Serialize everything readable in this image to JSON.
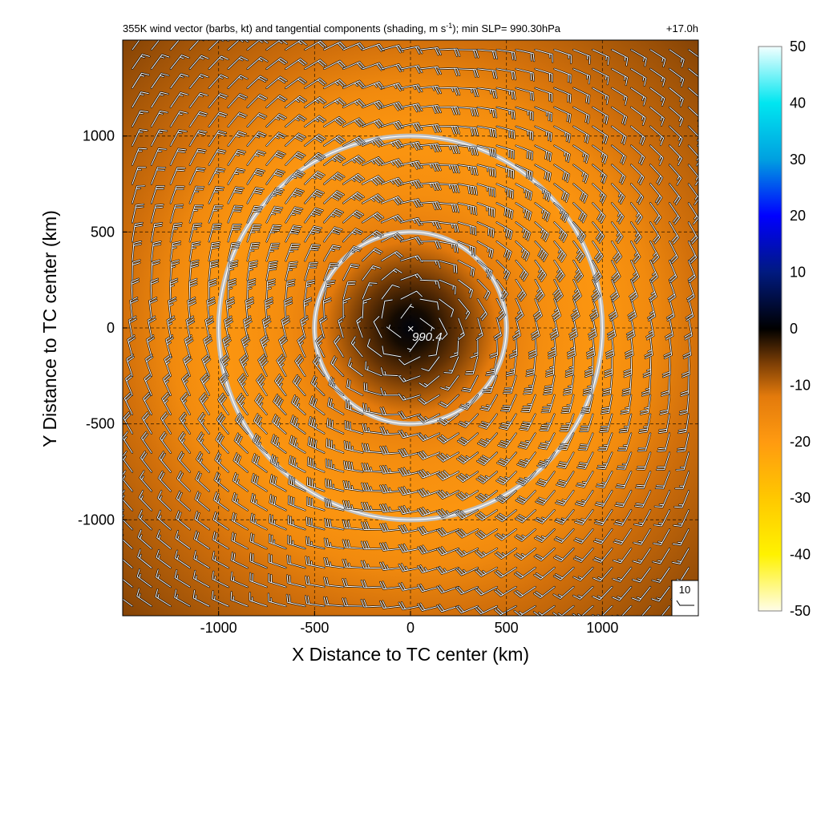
{
  "chart_data": {
    "type": "heatmap",
    "title": "355K wind vector (barbs, kt) and tangential components (shading, m s",
    "title_superscript": "-1",
    "title_suffix": "); min SLP= 990.30hPa",
    "time_label": "+17.0h",
    "xlabel": "X Distance to TC center (km)",
    "ylabel": "Y Distance to TC center (km)",
    "xlim": [
      -1500,
      1500
    ],
    "ylim": [
      -1500,
      1500
    ],
    "xticks": [
      -1000,
      -500,
      0,
      500,
      1000
    ],
    "yticks": [
      -1000,
      -500,
      0,
      500,
      1000
    ],
    "xtick_labels": [
      "-1000",
      "-500",
      "0",
      "500",
      "1000"
    ],
    "ytick_labels": [
      "-1000",
      "-500",
      "0",
      "500",
      "1000"
    ],
    "grid": "dashed",
    "range_rings_km": [
      500,
      1000
    ],
    "center_marker": {
      "symbol": "×",
      "x": 0,
      "y": 0,
      "label": "990.4"
    },
    "min_slp_hpa": 990.3,
    "barb_reference": {
      "label": "10",
      "units": "kt"
    },
    "colorbar": {
      "min": -50,
      "max": 50,
      "ticks": [
        50,
        40,
        30,
        20,
        10,
        0,
        -10,
        -20,
        -30,
        -40,
        -50
      ],
      "tick_labels": [
        "50",
        "40",
        "30",
        "20",
        "10",
        "0",
        "-10",
        "-20",
        "-30",
        "-40",
        "-50"
      ],
      "colors": [
        {
          "value": -50,
          "color": "#fffde8"
        },
        {
          "value": -40,
          "color": "#fff200"
        },
        {
          "value": -30,
          "color": "#ffc800"
        },
        {
          "value": -20,
          "color": "#ff9a10"
        },
        {
          "value": -12,
          "color": "#e37a0c"
        },
        {
          "value": -6,
          "color": "#7a3d05"
        },
        {
          "value": 0,
          "color": "#000000"
        },
        {
          "value": 10,
          "color": "#001a80"
        },
        {
          "value": 20,
          "color": "#0000ff"
        },
        {
          "value": 30,
          "color": "#00a0e0"
        },
        {
          "value": 40,
          "color": "#00e6f0"
        },
        {
          "value": 50,
          "color": "#f2ffff"
        }
      ]
    },
    "field_profile": [
      {
        "r_km": 0,
        "value": 1
      },
      {
        "r_km": 100,
        "value": -1
      },
      {
        "r_km": 250,
        "value": -5
      },
      {
        "r_km": 450,
        "value": -12
      },
      {
        "r_km": 700,
        "value": -17
      },
      {
        "r_km": 1000,
        "value": -19
      },
      {
        "r_km": 1250,
        "value": -16
      },
      {
        "r_km": 1500,
        "value": -11
      },
      {
        "r_km": 2200,
        "value": -6
      }
    ],
    "barb_spacing_km": 100,
    "speed_profile_kt": [
      {
        "r_km": 0,
        "speed": 5
      },
      {
        "r_km": 200,
        "speed": 10
      },
      {
        "r_km": 450,
        "speed": 22
      },
      {
        "r_km": 800,
        "speed": 38
      },
      {
        "r_km": 1100,
        "speed": 30
      },
      {
        "r_km": 1500,
        "speed": 18
      },
      {
        "r_km": 2200,
        "speed": 12
      }
    ]
  }
}
